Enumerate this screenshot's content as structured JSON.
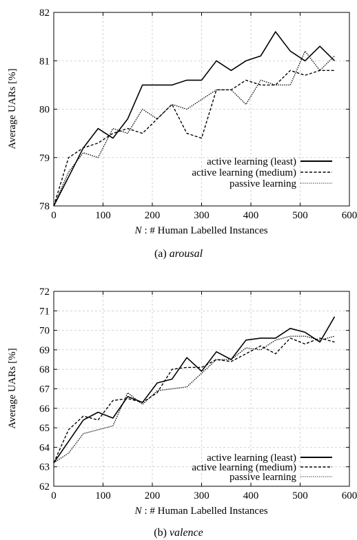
{
  "chart_data": [
    {
      "type": "line",
      "caption_prefix": "(a)",
      "caption_label": "arousal",
      "xlabel_var": "N",
      "xlabel": ": # Human Labelled Instances",
      "ylabel": "Average UARs [%]",
      "xlim": [
        0,
        600
      ],
      "ylim": [
        78,
        82
      ],
      "xticks": [
        0,
        100,
        200,
        300,
        400,
        500,
        600
      ],
      "yticks": [
        78,
        79,
        80,
        81,
        82
      ],
      "grid": true,
      "legend_position": "bottom-right",
      "series": [
        {
          "name": "active learning (least)",
          "style": "solid",
          "x": [
            0,
            30,
            60,
            90,
            120,
            150,
            180,
            210,
            240,
            270,
            300,
            330,
            360,
            390,
            420,
            450,
            480,
            510,
            540,
            570
          ],
          "y": [
            78.0,
            78.6,
            79.2,
            79.6,
            79.4,
            79.8,
            80.5,
            80.5,
            80.5,
            80.6,
            80.6,
            81.0,
            80.8,
            81.0,
            81.1,
            81.6,
            81.2,
            81.0,
            81.3,
            81.0
          ]
        },
        {
          "name": "active learning (medium)",
          "style": "dashed",
          "x": [
            0,
            30,
            60,
            90,
            120,
            150,
            180,
            210,
            240,
            270,
            300,
            330,
            360,
            390,
            420,
            450,
            480,
            510,
            540,
            570
          ],
          "y": [
            78.0,
            79.0,
            79.2,
            79.3,
            79.5,
            79.6,
            79.5,
            79.8,
            80.1,
            79.5,
            79.4,
            80.4,
            80.4,
            80.6,
            80.5,
            80.5,
            80.8,
            80.7,
            80.8,
            80.8
          ]
        },
        {
          "name": "passive learning",
          "style": "dotted",
          "x": [
            0,
            30,
            60,
            90,
            120,
            150,
            180,
            210,
            240,
            270,
            300,
            330,
            360,
            390,
            420,
            450,
            480,
            510,
            540,
            570
          ],
          "y": [
            78.0,
            78.7,
            79.1,
            79.0,
            79.6,
            79.5,
            80.0,
            79.8,
            80.1,
            80.0,
            80.2,
            80.4,
            80.4,
            80.1,
            80.6,
            80.5,
            80.5,
            81.2,
            80.8,
            81.1
          ]
        }
      ]
    },
    {
      "type": "line",
      "caption_prefix": "(b)",
      "caption_label": "valence",
      "xlabel_var": "N",
      "xlabel": ": # Human Labelled Instances",
      "ylabel": "Average UARs [%]",
      "xlim": [
        0,
        600
      ],
      "ylim": [
        62,
        72
      ],
      "xticks": [
        0,
        100,
        200,
        300,
        400,
        500,
        600
      ],
      "yticks": [
        62,
        63,
        64,
        65,
        66,
        67,
        68,
        69,
        70,
        71,
        72
      ],
      "grid": true,
      "legend_position": "bottom-right",
      "series": [
        {
          "name": "active learning (least)",
          "style": "solid",
          "x": [
            0,
            30,
            60,
            90,
            120,
            150,
            180,
            210,
            240,
            270,
            300,
            330,
            360,
            390,
            420,
            450,
            480,
            510,
            540,
            570
          ],
          "y": [
            63.2,
            64.3,
            65.4,
            65.8,
            65.5,
            66.6,
            66.3,
            67.3,
            67.5,
            68.6,
            67.9,
            68.9,
            68.5,
            69.5,
            69.6,
            69.6,
            70.1,
            69.9,
            69.4,
            70.7
          ]
        },
        {
          "name": "active learning (medium)",
          "style": "dashed",
          "x": [
            0,
            30,
            60,
            90,
            120,
            150,
            180,
            210,
            240,
            270,
            300,
            330,
            360,
            390,
            420,
            450,
            480,
            510,
            540,
            570
          ],
          "y": [
            63.2,
            64.9,
            65.6,
            65.4,
            66.4,
            66.5,
            66.3,
            66.8,
            68.0,
            68.1,
            68.1,
            68.5,
            68.4,
            68.8,
            69.2,
            68.8,
            69.6,
            69.3,
            69.6,
            69.4
          ]
        },
        {
          "name": "passive learning",
          "style": "dotted",
          "x": [
            0,
            30,
            60,
            90,
            120,
            150,
            180,
            210,
            240,
            270,
            300,
            330,
            360,
            390,
            420,
            450,
            480,
            510,
            540,
            570
          ],
          "y": [
            63.2,
            63.7,
            64.7,
            64.9,
            65.1,
            66.8,
            66.2,
            66.9,
            67.0,
            67.1,
            67.8,
            68.5,
            68.5,
            69.1,
            69.0,
            69.5,
            69.7,
            69.7,
            69.5,
            69.7
          ]
        }
      ]
    }
  ]
}
